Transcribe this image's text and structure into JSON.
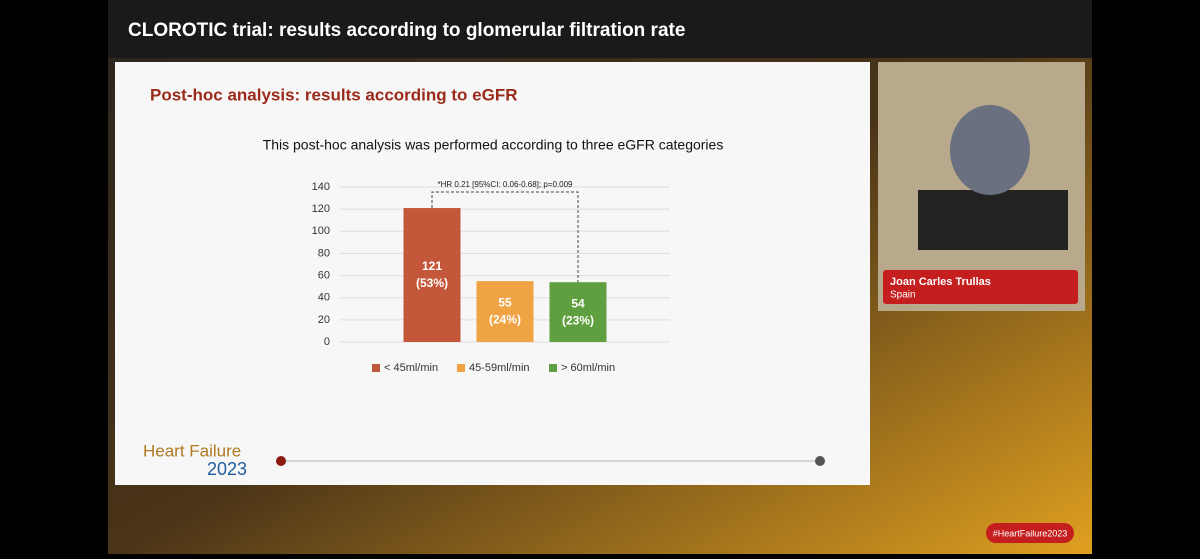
{
  "header": {
    "title": "CLOROTIC trial: results according to glomerular filtration rate"
  },
  "slide": {
    "heading": "Post-hoc analysis: results according to eGFR",
    "subtitle": "This post-hoc analysis was performed according to three eGFR categories",
    "logo": {
      "line1": "Heart Failure",
      "line2": "2023"
    }
  },
  "chart_data": {
    "type": "bar",
    "categories": [
      "< 45ml/min",
      "45-59ml/min",
      "> 60ml/min"
    ],
    "values": [
      121,
      55,
      54
    ],
    "share_labels": [
      "(53%)",
      "(24%)",
      "(23%)"
    ],
    "colors": [
      "#c4573a",
      "#f0a342",
      "#5f9f3f"
    ],
    "annotation": "*HR 0.21 [95%CI: 0.06-0.68]; p=0.009",
    "ylim": [
      0,
      140
    ],
    "yticks": [
      0,
      20,
      40,
      60,
      80,
      100,
      120,
      140
    ],
    "grid": true,
    "legend": "bottom"
  },
  "speaker": {
    "name": "Joan Carles Trullas",
    "country": "Spain"
  },
  "hashtag": "#HeartFailure2023"
}
